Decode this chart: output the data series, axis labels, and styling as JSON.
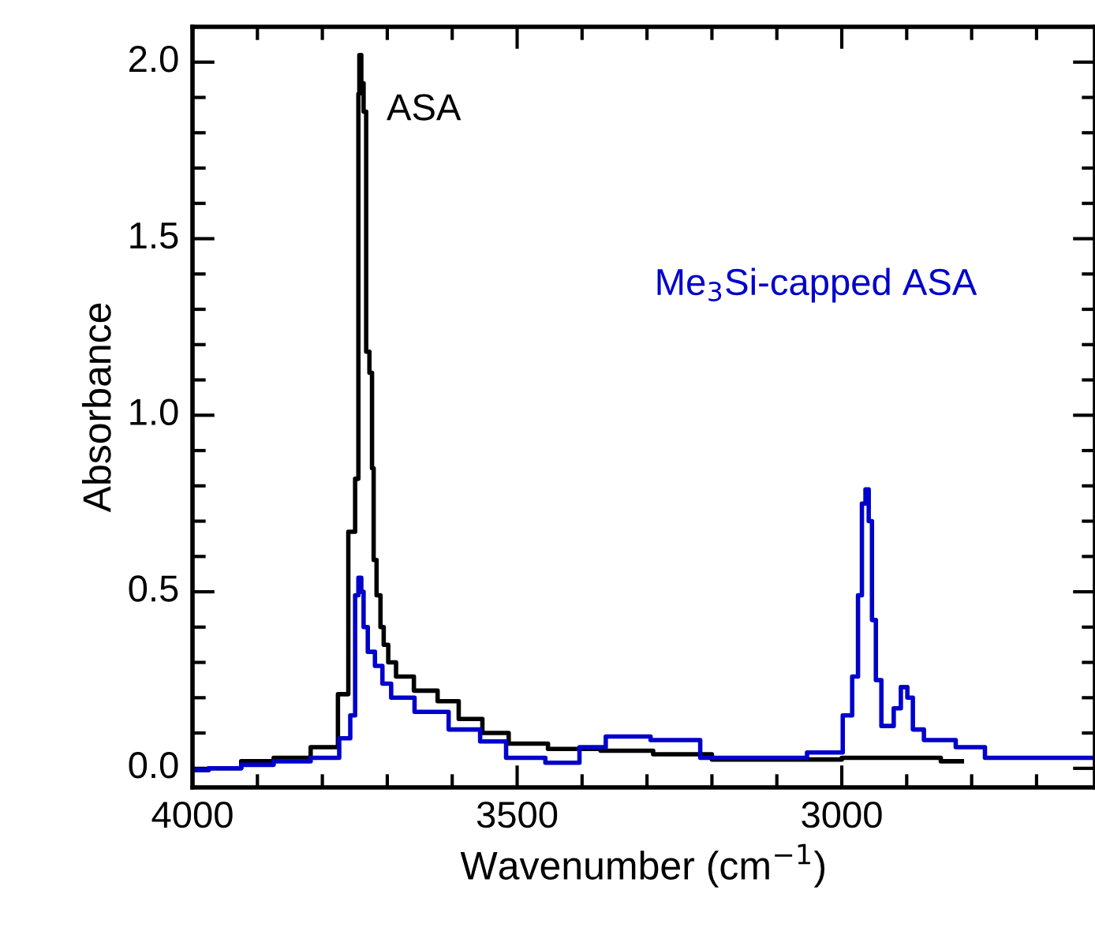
{
  "chart_data": {
    "type": "step",
    "xlabel": "Wavenumber (cm$^{−1}$)",
    "ylabel": "Absorbance",
    "xlim": [
      4000,
      2610
    ],
    "ylim": [
      -0.054,
      2.1
    ],
    "xticks": [
      4000,
      {
        "value": 3900,
        "label": null
      },
      {
        "value": 3800,
        "label": null
      },
      {
        "value": 3700,
        "label": null
      },
      {
        "value": 3600,
        "label": null
      },
      3500,
      {
        "value": 3400,
        "label": null
      },
      {
        "value": 3300,
        "label": null
      },
      {
        "value": 3200,
        "label": null
      },
      {
        "value": 3100,
        "label": null
      },
      3000,
      {
        "value": 2900,
        "label": null
      },
      {
        "value": 2800,
        "label": null
      },
      {
        "value": 2700,
        "label": null
      }
    ],
    "yticks": [
      {
        "value": 0,
        "label": "0.0"
      },
      {
        "value": 0.1,
        "label": null
      },
      {
        "value": 0.2,
        "label": null
      },
      {
        "value": 0.3,
        "label": null
      },
      {
        "value": 0.4,
        "label": null
      },
      0.5,
      {
        "value": 0.6,
        "label": null
      },
      {
        "value": 0.7,
        "label": null
      },
      {
        "value": 0.8,
        "label": null
      },
      {
        "value": 0.9,
        "label": null
      },
      {
        "value": 1.0,
        "label": "1.0"
      },
      {
        "value": 1.1,
        "label": null
      },
      {
        "value": 1.2,
        "label": null
      },
      {
        "value": 1.3,
        "label": null
      },
      {
        "value": 1.4,
        "label": null
      },
      1.5,
      {
        "value": 1.6,
        "label": null
      },
      {
        "value": 1.7,
        "label": null
      },
      {
        "value": 1.8,
        "label": null
      },
      {
        "value": 1.9,
        "label": null
      },
      {
        "value": 2.0,
        "label": "2.0"
      }
    ],
    "grid": false,
    "legend": false,
    "series": [
      {
        "name": "ASA",
        "color": "#000000",
        "x": [
          4000,
          3950,
          3900,
          3850,
          3786,
          3766,
          3754,
          3745,
          3744,
          3742,
          3738,
          3735,
          3730,
          3725,
          3722,
          3720,
          3713,
          3708,
          3703,
          3694,
          3679,
          3639,
          3606,
          3574,
          3533,
          3493,
          3412,
          3331,
          3250,
          3150,
          3050,
          2950,
          2880,
          2815
        ],
        "values": [
          -0.005,
          0.0,
          0.02,
          0.03,
          0.06,
          0.21,
          0.67,
          0.82,
          1.91,
          2.02,
          1.94,
          1.86,
          1.18,
          1.12,
          0.85,
          0.59,
          0.49,
          0.4,
          0.35,
          0.3,
          0.26,
          0.22,
          0.19,
          0.14,
          0.1,
          0.07,
          0.055,
          0.05,
          0.04,
          0.025,
          0.025,
          0.03,
          0.03,
          0.02
        ]
      },
      {
        "name": "Me$_{3}$Si-capped ASA",
        "color": "#0000cc",
        "x": [
          4000,
          3950,
          3900,
          3850,
          3786,
          3762,
          3752,
          3747,
          3742,
          3738,
          3735,
          3725,
          3713,
          3702,
          3686,
          3630,
          3581,
          3533,
          3501,
          3412,
          3396,
          3331,
          3258,
          3178,
          3100,
          3007,
          2990,
          2978,
          2972,
          2966,
          2961,
          2956,
          2951,
          2944,
          2934,
          2925,
          2915,
          2903,
          2895,
          2886,
          2861,
          2788,
          2771,
          2700,
          2610
        ],
        "values": [
          -0.005,
          0.0,
          0.01,
          0.02,
          0.03,
          0.085,
          0.15,
          0.49,
          0.54,
          0.5,
          0.4,
          0.33,
          0.29,
          0.24,
          0.2,
          0.16,
          0.11,
          0.076,
          0.03,
          0.016,
          0.06,
          0.09,
          0.08,
          0.03,
          0.03,
          0.045,
          0.15,
          0.26,
          0.49,
          0.75,
          0.79,
          0.7,
          0.42,
          0.25,
          0.12,
          0.12,
          0.17,
          0.23,
          0.2,
          0.11,
          0.08,
          0.06,
          0.03,
          0.03,
          0.03
        ]
      }
    ]
  }
}
